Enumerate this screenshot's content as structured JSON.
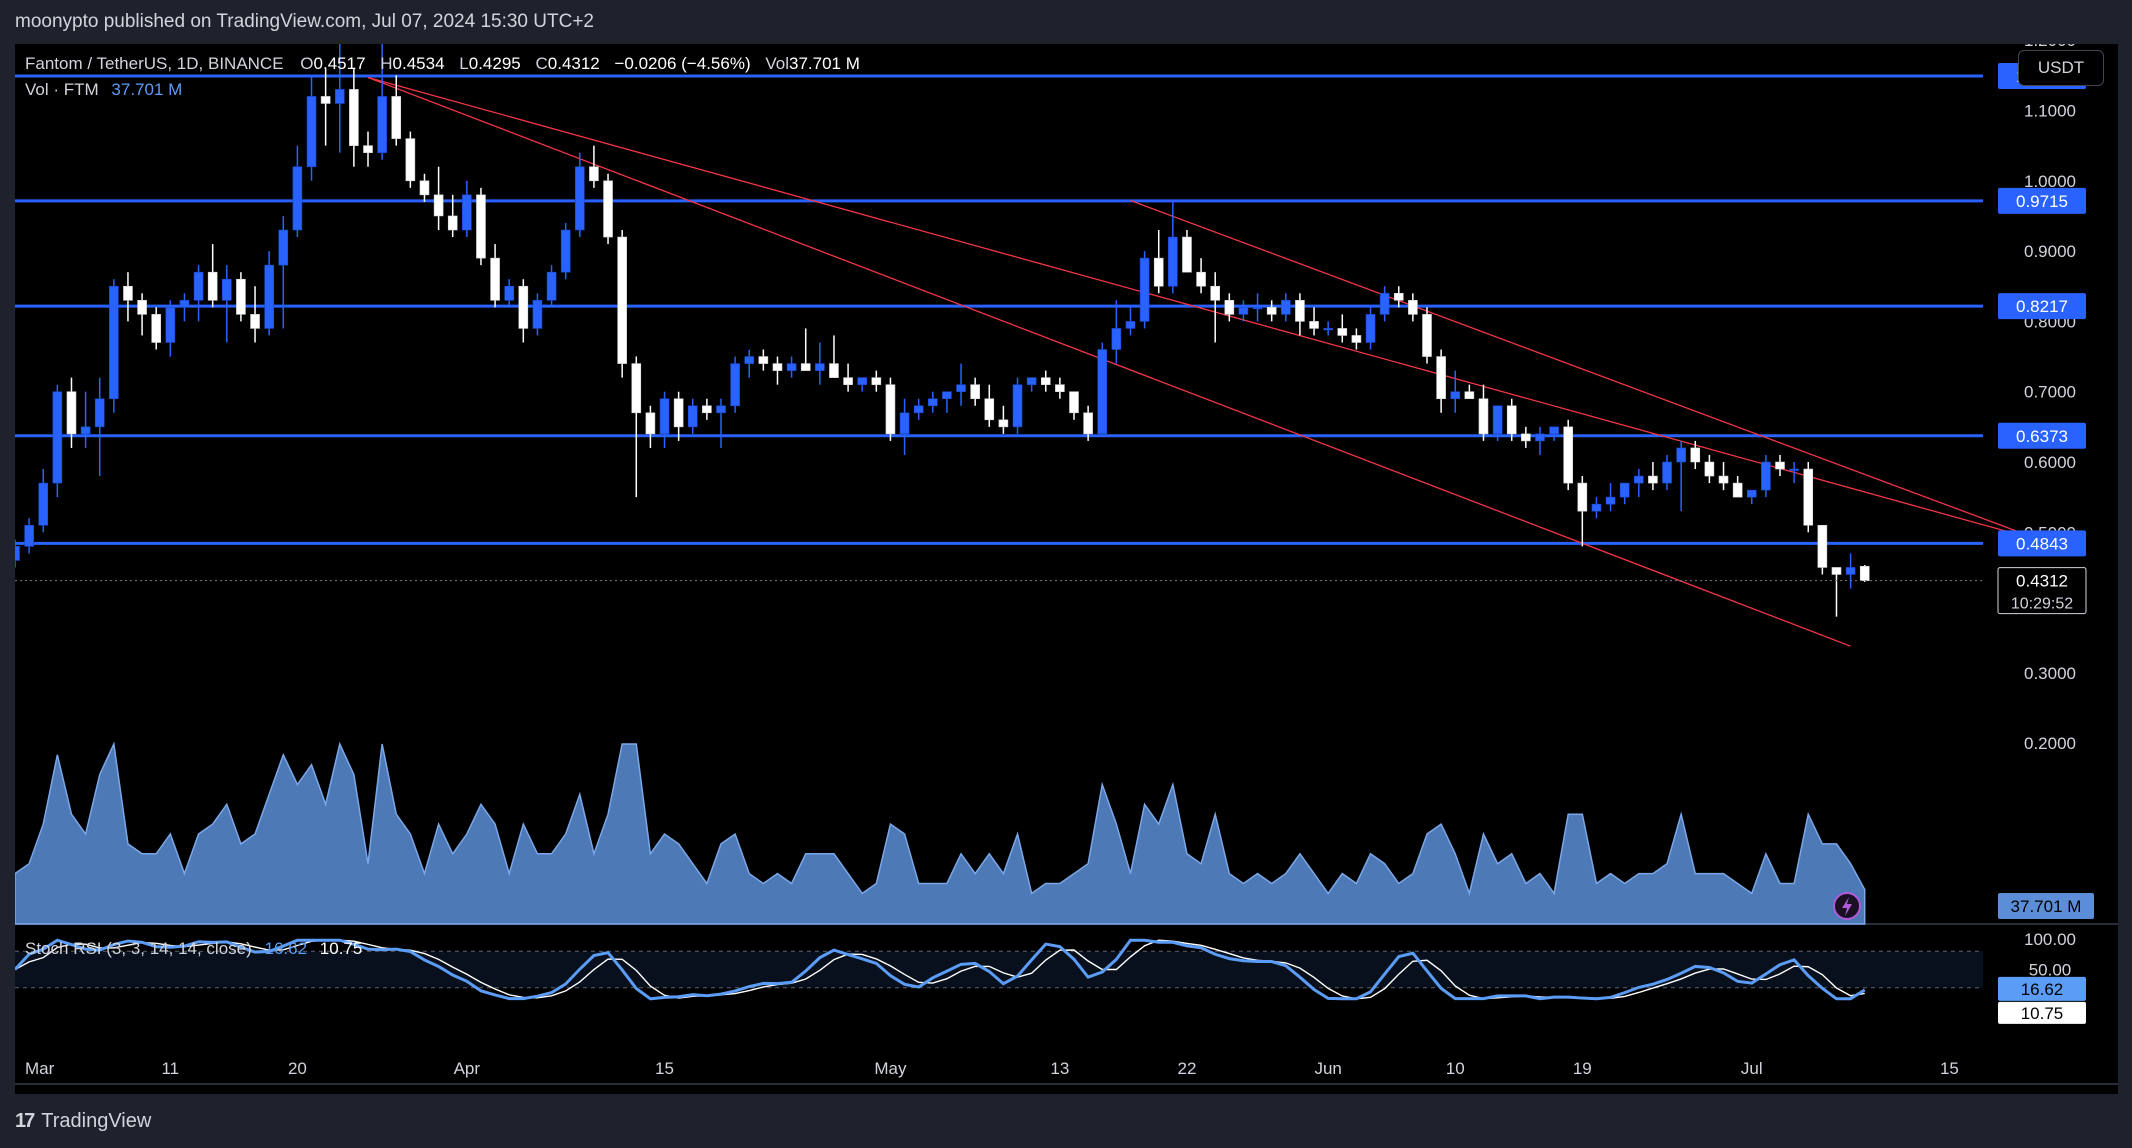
{
  "publisher": "moonypto published on TradingView.com, Jul 07, 2024 15:30 UTC+2",
  "legend": {
    "symbol": "Fantom / TetherUS, 1D, BINANCE",
    "open_label": "O",
    "open": "0.4517",
    "high_label": "H",
    "high": "0.4534",
    "low_label": "L",
    "low": "0.4295",
    "close_label": "C",
    "close": "0.4312",
    "change": "−0.0206 (−4.56%)",
    "vol_label": "Vol",
    "vol": "37.701 M",
    "vol_series_label": "Vol · FTM",
    "vol_series_value": "37.701 M"
  },
  "currency_button": "USDT",
  "stoch": {
    "label": "Stoch RSI (3, 3, 14, 14, close)",
    "k_value": "16.62",
    "d_value": "10.75",
    "axis_ticks": [
      "100.00",
      "50.00"
    ]
  },
  "price_axis_ticks": [
    "1.2000",
    "1.1000",
    "1.0000",
    "0.9000",
    "0.8000",
    "0.7000",
    "0.6000",
    "0.5000",
    "0.3000",
    "0.2000"
  ],
  "levels": [
    "1.1491",
    "0.9715",
    "0.8217",
    "0.6373",
    "0.4843"
  ],
  "last_price": {
    "value": "0.4312",
    "countdown": "10:29:52"
  },
  "volume_last_label": "37.701 M",
  "x_axis_ticks": [
    "Mar",
    "11",
    "20",
    "Apr",
    "15",
    "May",
    "13",
    "22",
    "Jun",
    "10",
    "19",
    "Jul",
    "15"
  ],
  "footer_brand": "TradingView",
  "colors": {
    "background": "#000000",
    "up_candle": "#2962ff",
    "down_candle": "#ffffff",
    "level_line": "#2962ff",
    "channel_line": "#f23645",
    "volume_fill": "#5b8ed6",
    "k_line": "#5b9cf6",
    "d_line": "#ffffff"
  },
  "chart_data": {
    "type": "candlestick",
    "title": "Fantom / TetherUS, 1D, BINANCE",
    "x_start": "2024-02-29",
    "x_end": "2024-07-07",
    "ylim": [
      0.3,
      1.2
    ],
    "price_levels": [
      1.1491,
      0.9715,
      0.8217,
      0.6373,
      0.4843
    ],
    "candles": [
      [
        0.46,
        0.49,
        0.45,
        0.48
      ],
      [
        0.48,
        0.52,
        0.47,
        0.51
      ],
      [
        0.51,
        0.59,
        0.5,
        0.57
      ],
      [
        0.57,
        0.71,
        0.55,
        0.7
      ],
      [
        0.7,
        0.72,
        0.62,
        0.64
      ],
      [
        0.64,
        0.7,
        0.62,
        0.65
      ],
      [
        0.65,
        0.72,
        0.58,
        0.69
      ],
      [
        0.69,
        0.86,
        0.67,
        0.85
      ],
      [
        0.85,
        0.87,
        0.8,
        0.83
      ],
      [
        0.83,
        0.84,
        0.78,
        0.81
      ],
      [
        0.81,
        0.82,
        0.76,
        0.77
      ],
      [
        0.77,
        0.83,
        0.75,
        0.82
      ],
      [
        0.82,
        0.84,
        0.8,
        0.83
      ],
      [
        0.83,
        0.88,
        0.8,
        0.87
      ],
      [
        0.87,
        0.91,
        0.82,
        0.83
      ],
      [
        0.83,
        0.88,
        0.77,
        0.86
      ],
      [
        0.86,
        0.87,
        0.8,
        0.81
      ],
      [
        0.81,
        0.85,
        0.77,
        0.79
      ],
      [
        0.79,
        0.9,
        0.78,
        0.88
      ],
      [
        0.88,
        0.95,
        0.79,
        0.93
      ],
      [
        0.93,
        1.05,
        0.92,
        1.02
      ],
      [
        1.02,
        1.15,
        1.0,
        1.12
      ],
      [
        1.12,
        1.16,
        1.05,
        1.11
      ],
      [
        1.11,
        1.23,
        1.04,
        1.13
      ],
      [
        1.13,
        1.16,
        1.02,
        1.05
      ],
      [
        1.05,
        1.07,
        1.02,
        1.04
      ],
      [
        1.04,
        1.23,
        1.03,
        1.12
      ],
      [
        1.12,
        1.15,
        1.05,
        1.06
      ],
      [
        1.06,
        1.07,
        0.99,
        1.0
      ],
      [
        1.0,
        1.01,
        0.97,
        0.98
      ],
      [
        0.98,
        1.02,
        0.93,
        0.95
      ],
      [
        0.95,
        0.98,
        0.92,
        0.93
      ],
      [
        0.93,
        1.0,
        0.92,
        0.98
      ],
      [
        0.98,
        0.99,
        0.88,
        0.89
      ],
      [
        0.89,
        0.91,
        0.82,
        0.83
      ],
      [
        0.83,
        0.86,
        0.82,
        0.85
      ],
      [
        0.85,
        0.86,
        0.77,
        0.79
      ],
      [
        0.79,
        0.84,
        0.78,
        0.83
      ],
      [
        0.83,
        0.88,
        0.82,
        0.87
      ],
      [
        0.87,
        0.94,
        0.86,
        0.93
      ],
      [
        0.93,
        1.04,
        0.92,
        1.02
      ],
      [
        1.02,
        1.05,
        0.99,
        1.0
      ],
      [
        1.0,
        1.01,
        0.91,
        0.92
      ],
      [
        0.92,
        0.93,
        0.72,
        0.74
      ],
      [
        0.74,
        0.75,
        0.55,
        0.67
      ],
      [
        0.67,
        0.68,
        0.62,
        0.64
      ],
      [
        0.64,
        0.7,
        0.62,
        0.69
      ],
      [
        0.69,
        0.7,
        0.63,
        0.65
      ],
      [
        0.65,
        0.69,
        0.64,
        0.68
      ],
      [
        0.68,
        0.69,
        0.66,
        0.67
      ],
      [
        0.67,
        0.69,
        0.62,
        0.68
      ],
      [
        0.68,
        0.75,
        0.67,
        0.74
      ],
      [
        0.74,
        0.76,
        0.72,
        0.75
      ],
      [
        0.75,
        0.76,
        0.73,
        0.74
      ],
      [
        0.74,
        0.75,
        0.71,
        0.73
      ],
      [
        0.73,
        0.75,
        0.72,
        0.74
      ],
      [
        0.74,
        0.79,
        0.73,
        0.73
      ],
      [
        0.73,
        0.77,
        0.71,
        0.74
      ],
      [
        0.74,
        0.78,
        0.72,
        0.72
      ],
      [
        0.72,
        0.74,
        0.7,
        0.71
      ],
      [
        0.71,
        0.72,
        0.7,
        0.72
      ],
      [
        0.72,
        0.73,
        0.7,
        0.71
      ],
      [
        0.71,
        0.72,
        0.63,
        0.64
      ],
      [
        0.64,
        0.69,
        0.61,
        0.67
      ],
      [
        0.67,
        0.69,
        0.66,
        0.68
      ],
      [
        0.68,
        0.7,
        0.67,
        0.69
      ],
      [
        0.69,
        0.7,
        0.67,
        0.7
      ],
      [
        0.7,
        0.74,
        0.68,
        0.71
      ],
      [
        0.71,
        0.72,
        0.68,
        0.69
      ],
      [
        0.69,
        0.71,
        0.65,
        0.66
      ],
      [
        0.66,
        0.68,
        0.64,
        0.65
      ],
      [
        0.65,
        0.72,
        0.64,
        0.71
      ],
      [
        0.71,
        0.72,
        0.7,
        0.72
      ],
      [
        0.72,
        0.73,
        0.7,
        0.71
      ],
      [
        0.71,
        0.72,
        0.69,
        0.7
      ],
      [
        0.7,
        0.7,
        0.66,
        0.67
      ],
      [
        0.67,
        0.68,
        0.63,
        0.64
      ],
      [
        0.64,
        0.77,
        0.64,
        0.76
      ],
      [
        0.76,
        0.83,
        0.74,
        0.79
      ],
      [
        0.79,
        0.82,
        0.78,
        0.8
      ],
      [
        0.8,
        0.9,
        0.79,
        0.89
      ],
      [
        0.89,
        0.93,
        0.84,
        0.85
      ],
      [
        0.85,
        0.97,
        0.84,
        0.92
      ],
      [
        0.92,
        0.93,
        0.87,
        0.87
      ],
      [
        0.87,
        0.89,
        0.84,
        0.85
      ],
      [
        0.85,
        0.87,
        0.77,
        0.83
      ],
      [
        0.83,
        0.84,
        0.8,
        0.81
      ],
      [
        0.81,
        0.83,
        0.8,
        0.82
      ],
      [
        0.82,
        0.84,
        0.8,
        0.82
      ],
      [
        0.82,
        0.83,
        0.8,
        0.81
      ],
      [
        0.81,
        0.84,
        0.8,
        0.83
      ],
      [
        0.83,
        0.84,
        0.78,
        0.8
      ],
      [
        0.8,
        0.82,
        0.78,
        0.79
      ],
      [
        0.79,
        0.8,
        0.78,
        0.79
      ],
      [
        0.79,
        0.81,
        0.77,
        0.78
      ],
      [
        0.78,
        0.79,
        0.76,
        0.77
      ],
      [
        0.77,
        0.82,
        0.76,
        0.81
      ],
      [
        0.81,
        0.85,
        0.8,
        0.84
      ],
      [
        0.84,
        0.85,
        0.82,
        0.83
      ],
      [
        0.83,
        0.84,
        0.8,
        0.81
      ],
      [
        0.81,
        0.82,
        0.74,
        0.75
      ],
      [
        0.75,
        0.76,
        0.67,
        0.69
      ],
      [
        0.69,
        0.73,
        0.67,
        0.7
      ],
      [
        0.7,
        0.71,
        0.69,
        0.69
      ],
      [
        0.69,
        0.71,
        0.63,
        0.64
      ],
      [
        0.64,
        0.68,
        0.63,
        0.68
      ],
      [
        0.68,
        0.69,
        0.63,
        0.64
      ],
      [
        0.64,
        0.65,
        0.62,
        0.63
      ],
      [
        0.63,
        0.65,
        0.61,
        0.64
      ],
      [
        0.64,
        0.65,
        0.63,
        0.65
      ],
      [
        0.65,
        0.66,
        0.56,
        0.57
      ],
      [
        0.57,
        0.58,
        0.48,
        0.53
      ],
      [
        0.53,
        0.55,
        0.52,
        0.54
      ],
      [
        0.54,
        0.57,
        0.53,
        0.55
      ],
      [
        0.55,
        0.57,
        0.54,
        0.57
      ],
      [
        0.57,
        0.59,
        0.55,
        0.58
      ],
      [
        0.58,
        0.6,
        0.56,
        0.57
      ],
      [
        0.57,
        0.61,
        0.56,
        0.6
      ],
      [
        0.6,
        0.63,
        0.53,
        0.62
      ],
      [
        0.62,
        0.63,
        0.59,
        0.6
      ],
      [
        0.6,
        0.61,
        0.57,
        0.58
      ],
      [
        0.58,
        0.6,
        0.56,
        0.57
      ],
      [
        0.57,
        0.58,
        0.55,
        0.55
      ],
      [
        0.55,
        0.56,
        0.54,
        0.56
      ],
      [
        0.56,
        0.61,
        0.55,
        0.6
      ],
      [
        0.6,
        0.61,
        0.58,
        0.59
      ],
      [
        0.59,
        0.6,
        0.57,
        0.59
      ],
      [
        0.59,
        0.6,
        0.5,
        0.51
      ],
      [
        0.51,
        0.51,
        0.44,
        0.45
      ],
      [
        0.45,
        0.45,
        0.38,
        0.44
      ],
      [
        0.44,
        0.47,
        0.42,
        0.45
      ],
      [
        0.4517,
        0.4534,
        0.4295,
        0.4312
      ]
    ],
    "stoch_rsi": {
      "k": 16.62,
      "d": 10.75,
      "range": [
        0,
        100
      ],
      "bands": [
        20,
        80
      ]
    }
  }
}
